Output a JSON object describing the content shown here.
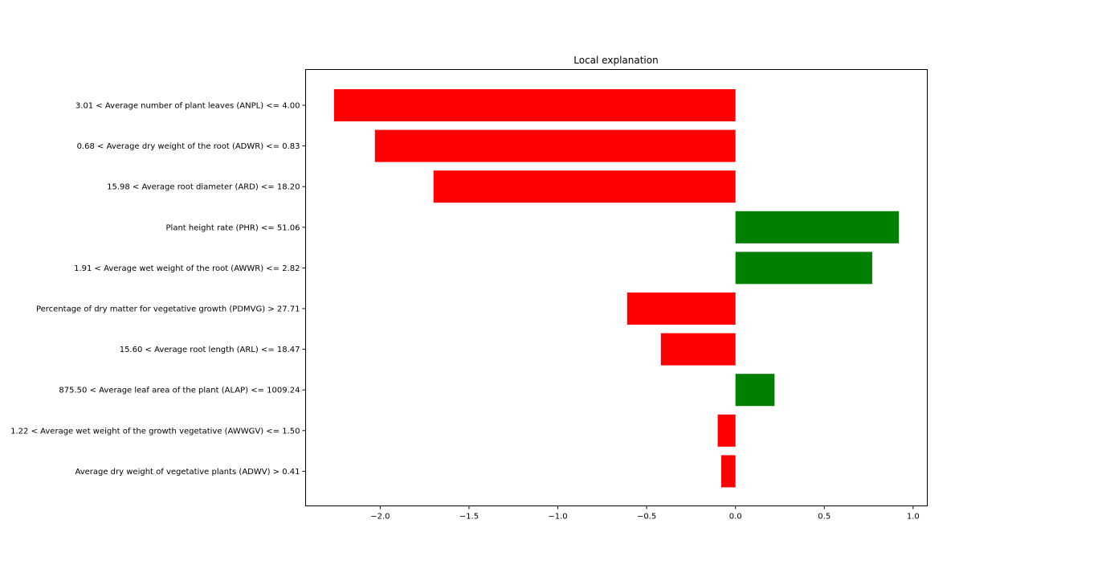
{
  "chart_data": {
    "type": "bar",
    "orientation": "horizontal",
    "title": "Local explanation",
    "xlabel": "",
    "ylabel": "",
    "xlim": [
      -2.42,
      1.08
    ],
    "xticks": [
      -2.0,
      -1.5,
      -1.0,
      -0.5,
      0.0,
      0.5,
      1.0
    ],
    "xtick_labels": [
      "−2.0",
      "−1.5",
      "−1.0",
      "−0.5",
      "0.0",
      "0.5",
      "1.0"
    ],
    "grid": false,
    "colors": {
      "positive": "#008000",
      "negative": "#ff0000"
    },
    "categories": [
      "3.01 < Average number of plant leaves (ANPL) <= 4.00",
      "0.68 <  Average dry weight of the root (ADWR) <= 0.83",
      "15.98 < Average root diameter (ARD) <= 18.20",
      "Plant height rate (PHR) <= 51.06",
      "1.91 < Average wet weight of the root (AWWR) <= 2.82",
      "Percentage of dry matter for vegetative growth (PDMVG) > 27.71",
      "15.60 < Average root length (ARL) <= 18.47",
      "875.50 < Average leaf area of the plant (ALAP) <= 1009.24",
      "1.22 < Average wet weight of the growth vegetative (AWWGV) <= 1.50",
      "Average dry weight of vegetative plants (ADWV) > 0.41"
    ],
    "values": [
      -2.26,
      -2.03,
      -1.7,
      0.92,
      0.77,
      -0.61,
      -0.42,
      0.22,
      -0.1,
      -0.08
    ]
  }
}
